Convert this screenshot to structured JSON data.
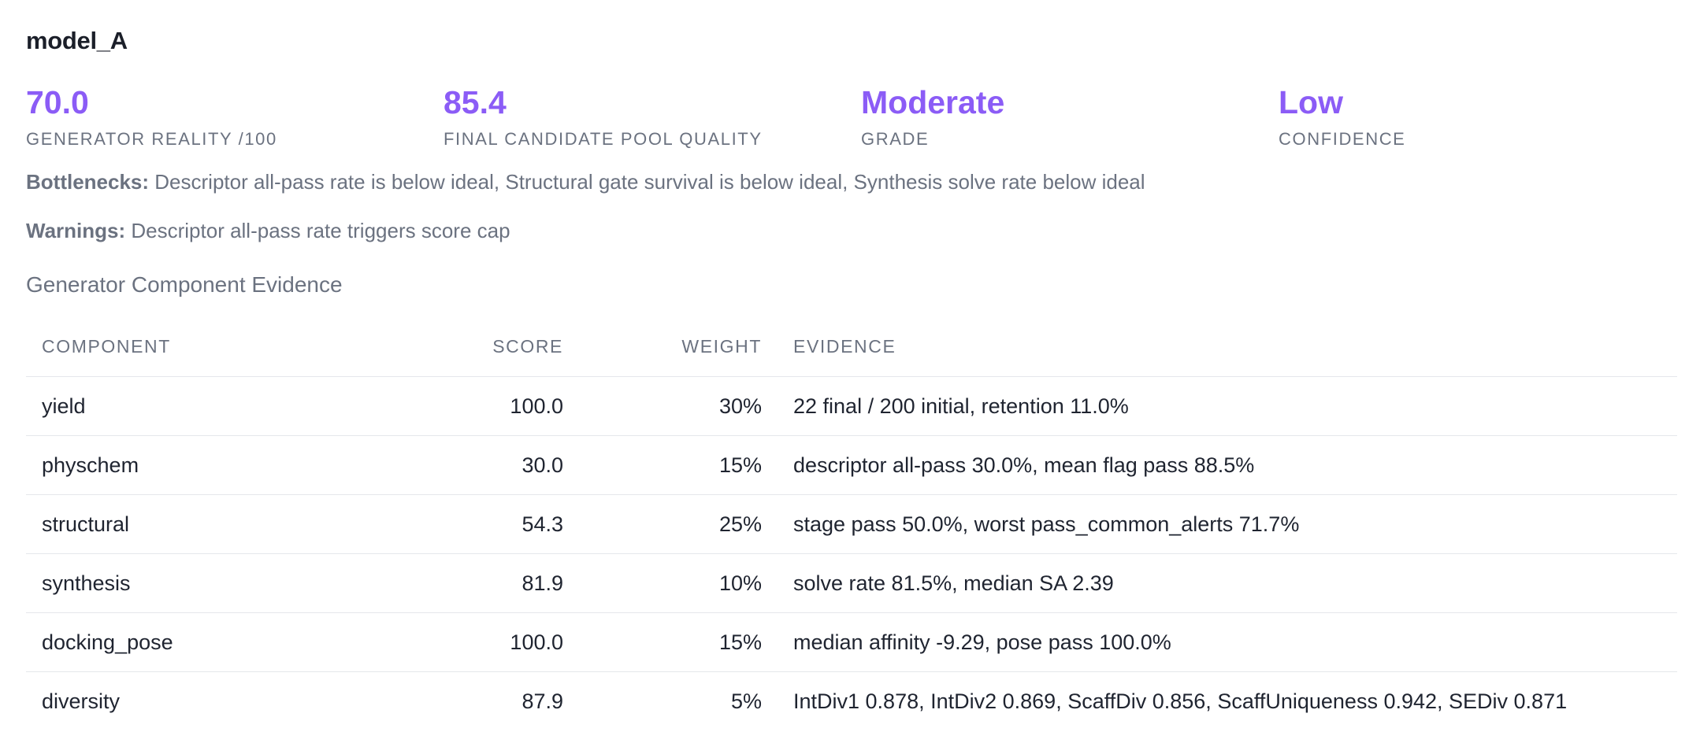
{
  "model": {
    "title": "model_A"
  },
  "metrics": [
    {
      "value": "70.0",
      "label": "GENERATOR REALITY /100"
    },
    {
      "value": "85.4",
      "label": "FINAL CANDIDATE POOL QUALITY"
    },
    {
      "value": "Moderate",
      "label": "GRADE"
    },
    {
      "value": "Low",
      "label": "CONFIDENCE"
    }
  ],
  "notes": {
    "bottlenecks_label": "Bottlenecks:",
    "bottlenecks_text": "Descriptor all-pass rate is below ideal, Structural gate survival is below ideal, Synthesis solve rate below ideal",
    "warnings_label": "Warnings:",
    "warnings_text": "Descriptor all-pass rate triggers score cap"
  },
  "section": {
    "title": "Generator Component Evidence"
  },
  "table": {
    "headers": {
      "component": "COMPONENT",
      "score": "SCORE",
      "weight": "WEIGHT",
      "evidence": "EVIDENCE"
    },
    "rows": [
      {
        "component": "yield",
        "score": "100.0",
        "weight": "30%",
        "evidence": "22 final / 200 initial, retention 11.0%"
      },
      {
        "component": "physchem",
        "score": "30.0",
        "weight": "15%",
        "evidence": "descriptor all-pass 30.0%, mean flag pass 88.5%"
      },
      {
        "component": "structural",
        "score": "54.3",
        "weight": "25%",
        "evidence": "stage pass 50.0%, worst pass_common_alerts 71.7%"
      },
      {
        "component": "synthesis",
        "score": "81.9",
        "weight": "10%",
        "evidence": "solve rate 81.5%, median SA 2.39"
      },
      {
        "component": "docking_pose",
        "score": "100.0",
        "weight": "15%",
        "evidence": "median affinity -9.29, pose pass 100.0%"
      },
      {
        "component": "diversity",
        "score": "87.9",
        "weight": "5%",
        "evidence": "IntDiv1 0.878, IntDiv2 0.869, ScaffDiv 0.856, ScaffUniqueness 0.942, SEDiv 0.871"
      }
    ]
  },
  "colors": {
    "accent": "#8b5cf6",
    "muted": "#6b7280",
    "text": "#1f2430",
    "divider": "#e5e7eb"
  }
}
